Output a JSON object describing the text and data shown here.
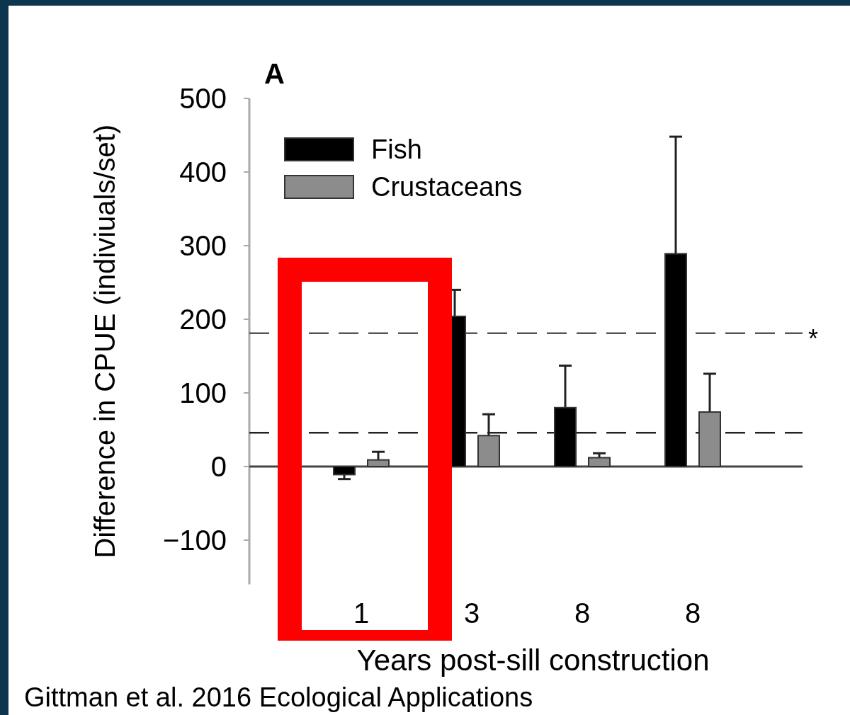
{
  "chart_data": {
    "type": "bar",
    "xlabel": "Years post-sill construction",
    "ylabel": "Difference in CPUE (indiviuals/set)",
    "categories": [
      "1",
      "3",
      "8",
      "8"
    ],
    "series": [
      {
        "name": "Fish",
        "color": "#000000",
        "values": [
          -11,
          204,
          80,
          289
        ],
        "errors": [
          [
            -17,
            -11
          ],
          [
            204,
            240
          ],
          [
            80,
            137
          ],
          [
            289,
            448
          ]
        ]
      },
      {
        "name": "Crustaceans",
        "color": "#8c8c8c",
        "values": [
          9,
          42,
          12,
          74
        ],
        "errors": [
          [
            9,
            20
          ],
          [
            42,
            71
          ],
          [
            12,
            18
          ],
          [
            74,
            126
          ]
        ]
      }
    ],
    "ylim": [
      -160,
      500
    ],
    "yticks": [
      -100,
      0,
      100,
      200,
      300,
      400,
      500
    ],
    "ref_lines": [
      {
        "axis": "y",
        "value": 181,
        "label": "*",
        "color": "#555555",
        "line_style": "dashed"
      },
      {
        "axis": "y",
        "value": 46,
        "color": "#222222",
        "line_style": "dashed"
      }
    ],
    "legend": "top left",
    "annotations": [
      "A",
      "Gittman et al. 2016 Ecological Applications"
    ]
  }
}
